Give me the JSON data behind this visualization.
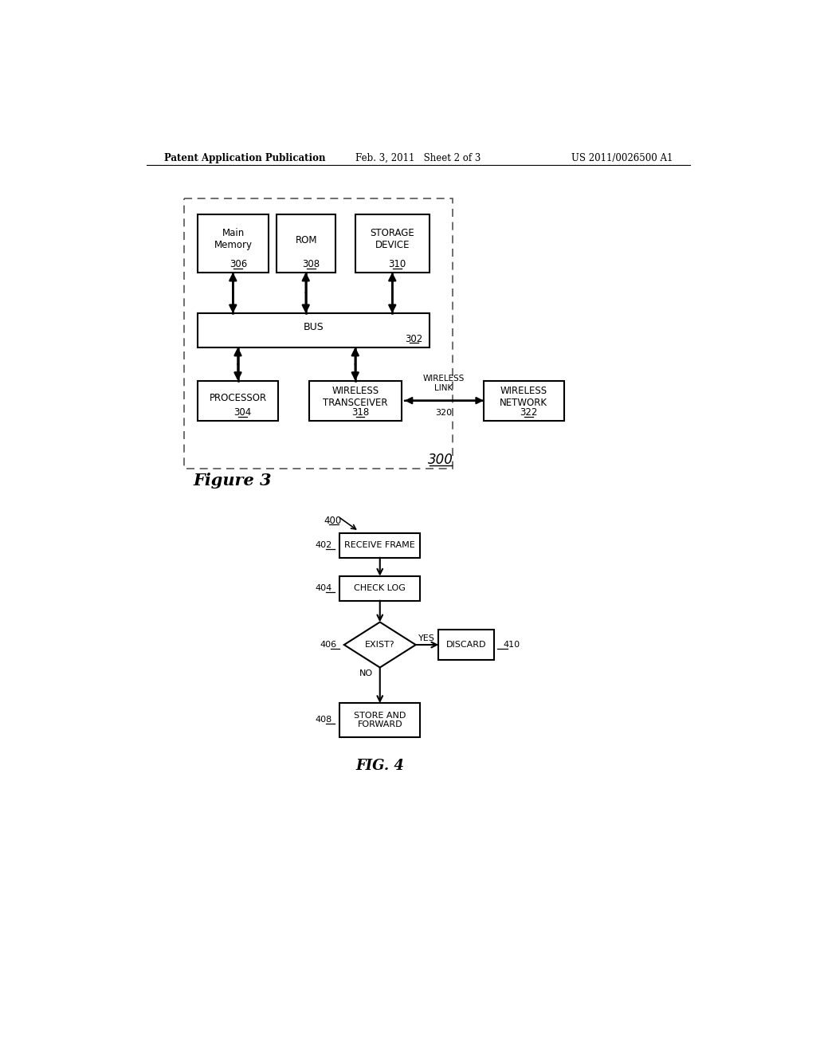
{
  "bg_color": "#ffffff",
  "header_left": "Patent Application Publication",
  "header_center": "Feb. 3, 2011   Sheet 2 of 3",
  "header_right": "US 2011/0026500 A1",
  "fig3_label": "Figure 3",
  "fig4_label": "FIG. 4",
  "fig3_ref": "300",
  "boxes": {
    "main_memory": {
      "label": "Main\nMemory",
      "ref": "306"
    },
    "rom": {
      "label": "ROM",
      "ref": "308"
    },
    "storage": {
      "label": "STORAGE\nDEVICE",
      "ref": "310"
    },
    "bus": {
      "label": "BUS",
      "ref": "302"
    },
    "processor": {
      "label": "PROCESSOR",
      "ref": "304"
    },
    "wireless_transceiver": {
      "label": "WIRELESS\nTRANSCEIVER",
      "ref": "318"
    },
    "wireless_network": {
      "label": "WIRELESS\nNETWORK",
      "ref": "322"
    }
  },
  "wireless_link_label": "WIRELESS\nLINK",
  "wireless_link_ref": "320",
  "flow_boxes": {
    "receive_frame": {
      "label": "RECEIVE FRAME",
      "ref": "402"
    },
    "check_log": {
      "label": "CHECK LOG",
      "ref": "404"
    },
    "exist": {
      "label": "EXIST?",
      "ref": "406",
      "shape": "diamond"
    },
    "discard": {
      "label": "DISCARD",
      "ref": "410"
    },
    "store_forward": {
      "label": "STORE AND\nFORWARD",
      "ref": "408"
    }
  },
  "flow_ref": "400"
}
